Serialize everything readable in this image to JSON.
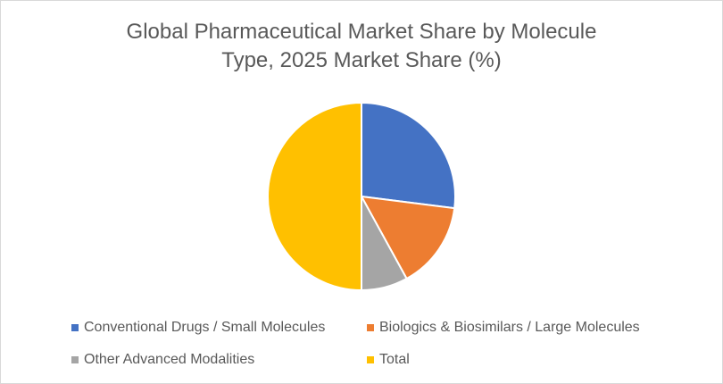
{
  "chart_data": {
    "type": "pie",
    "title": "Global Pharmaceutical Market Share by Molecule Type, 2025 Market Share (%)",
    "title_lines": [
      "Global Pharmaceutical Market Share by Molecule",
      "Type, 2025 Market Share (%)"
    ],
    "slices": [
      {
        "label": "Conventional Drugs / Small Molecules",
        "value": 27,
        "color": "#4472C4"
      },
      {
        "label": "Biologics & Biosimilars / Large Molecules",
        "value": 15,
        "color": "#ED7D31"
      },
      {
        "label": "Other Advanced Modalities",
        "value": 8,
        "color": "#A5A5A5"
      },
      {
        "label": "Total",
        "value": 50,
        "color": "#FFC000"
      }
    ],
    "start_angle_deg": 0,
    "direction": "clockwise",
    "slice_border_color": "#FFFFFF",
    "legend_position": "bottom"
  }
}
